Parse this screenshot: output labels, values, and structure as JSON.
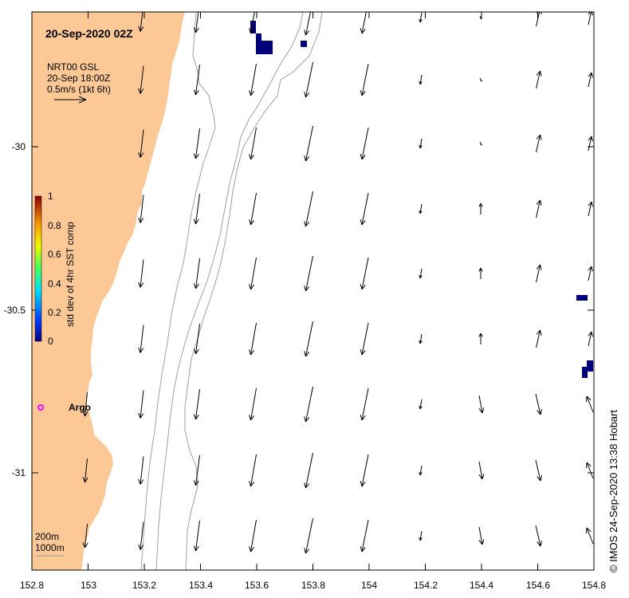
{
  "map": {
    "title": "20-Sep-2020 02Z",
    "vector_legend": {
      "line1": "NRT00 GSL",
      "line2": "20-Sep 18:00Z",
      "line3": "0.5m/s (1kt 6h)"
    },
    "colorbar": {
      "label": "std dev of 4hr SST comp",
      "ticks": [
        "1",
        "0.8",
        "0.6",
        "0.4",
        "0.2",
        "0"
      ]
    },
    "isobath_legend": [
      "200m",
      "1000m"
    ],
    "argo_label": "Argo",
    "x_ticks": [
      "152.8",
      "153",
      "153.2",
      "153.4",
      "153.6",
      "153.8",
      "154",
      "154.2",
      "154.4",
      "154.6",
      "154.8"
    ],
    "y_ticks": [
      "-30",
      "-30.5",
      "-31"
    ],
    "credit": "© IMOS 24-Sep-2020 13:38 Hobart",
    "colors": {
      "land": "#fcc996",
      "isobath": "#a0a0a0",
      "sst_cells": "#00007a",
      "argo": "#ff00ff"
    }
  }
}
